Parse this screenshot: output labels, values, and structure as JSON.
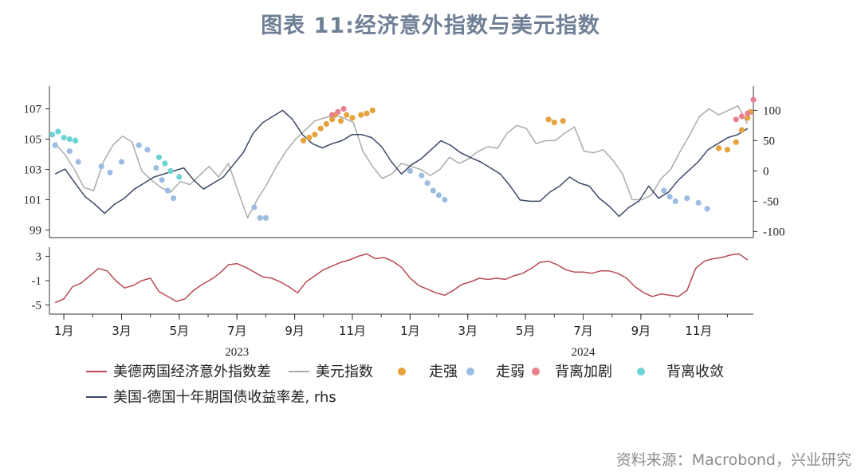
{
  "title": "图表 11:经济意外指数与美元指数",
  "source": "资料来源：Macrobond，兴业研究",
  "chart_data": {
    "type": "line",
    "x_axis": {
      "month_ticks": [
        "1月",
        "3月",
        "5月",
        "7月",
        "9月",
        "11月",
        "1月",
        "3月",
        "5月",
        "7月",
        "9月",
        "11月"
      ],
      "tick_month_index": [
        0,
        2,
        4,
        6,
        8,
        10,
        12,
        14,
        16,
        18,
        20,
        22
      ],
      "years": [
        {
          "label": "2023",
          "center_month": 6
        },
        {
          "label": "2024",
          "center_month": 18
        }
      ],
      "range_months": [
        -0.5,
        23.9
      ]
    },
    "top_panel": {
      "left_axis": {
        "ticks": [
          99,
          101,
          103,
          105,
          107
        ],
        "range": [
          98.5,
          108.5
        ]
      },
      "right_axis": {
        "ticks": [
          100,
          50,
          0,
          -50,
          -100
        ],
        "range": [
          -110,
          140
        ]
      }
    },
    "bottom_panel": {
      "axis": {
        "ticks": [
          3,
          -1,
          -5
        ],
        "range": [
          -6.5,
          4.5
        ]
      }
    },
    "series": [
      {
        "name": "美德两国经济意外指数差",
        "panel": "bottom",
        "color": "#b94a55",
        "values": [
          -4.6,
          -4.0,
          -2.0,
          -1.4,
          -0.2,
          1.0,
          0.6,
          -1.0,
          -2.2,
          -1.8,
          -1.0,
          -0.6,
          -2.8,
          -3.6,
          -4.4,
          -4.0,
          -2.6,
          -1.6,
          -0.8,
          0.2,
          1.6,
          1.8,
          1.2,
          0.4,
          -0.4,
          -0.6,
          -1.2,
          -2.0,
          -3.0,
          -1.2,
          -0.2,
          0.8,
          1.4,
          2.0,
          2.4,
          3.0,
          3.4,
          2.6,
          2.8,
          2.2,
          1.2,
          -0.6,
          -1.8,
          -2.4,
          -3.0,
          -3.4,
          -2.6,
          -1.6,
          -1.2,
          -0.6,
          -0.8,
          -0.6,
          -0.8,
          -0.2,
          0.2,
          1.0,
          2.0,
          2.2,
          1.6,
          0.8,
          0.4,
          0.4,
          0.2,
          0.6,
          0.6,
          0.2,
          -0.6,
          -2.0,
          -3.0,
          -3.6,
          -3.2,
          -3.4,
          -3.6,
          -2.6,
          1.0,
          2.2,
          2.6,
          2.8,
          3.2,
          3.4,
          2.4
        ]
      },
      {
        "name": "美元指数",
        "panel": "top",
        "axis": "left",
        "color": "#ababab",
        "values": [
          104.7,
          104.0,
          103.0,
          101.8,
          101.6,
          103.5,
          104.6,
          105.2,
          104.8,
          102.9,
          102.3,
          101.8,
          101.5,
          102.2,
          102.0,
          102.6,
          103.2,
          102.5,
          103.4,
          101.6,
          99.8,
          101.0,
          102.0,
          103.2,
          104.2,
          105.0,
          105.6,
          106.2,
          106.4,
          106.6,
          106.4,
          106.1,
          104.2,
          103.2,
          102.4,
          102.7,
          103.4,
          103.2,
          103.0,
          102.6,
          103.0,
          103.8,
          103.4,
          103.7,
          104.2,
          104.5,
          104.4,
          105.4,
          105.9,
          105.7,
          104.7,
          104.9,
          104.9,
          105.4,
          105.8,
          104.2,
          104.1,
          104.3,
          103.6,
          102.7,
          101.0,
          101.0,
          101.3,
          102.4,
          103.0,
          104.2,
          105.3,
          106.5,
          107.0,
          106.6,
          106.9,
          107.2,
          106.0
        ]
      },
      {
        "name": "美国-德国十年期国债收益率差",
        "panel": "top",
        "axis": "right",
        "color": "#3c4a66",
        "values": [
          -5,
          3,
          -20,
          -42,
          -55,
          -70,
          -55,
          -45,
          -30,
          -20,
          -10,
          -5,
          0,
          5,
          -15,
          -30,
          -20,
          -10,
          10,
          30,
          62,
          80,
          90,
          100,
          85,
          60,
          45,
          38,
          45,
          50,
          60,
          60,
          55,
          40,
          15,
          -5,
          10,
          20,
          35,
          50,
          42,
          30,
          22,
          15,
          5,
          -5,
          -25,
          -48,
          -50,
          -50,
          -35,
          -25,
          -10,
          -20,
          -25,
          -45,
          -58,
          -75,
          -60,
          -50,
          -25,
          -45,
          -35,
          -15,
          0,
          15,
          35,
          45,
          55,
          60,
          70
        ]
      }
    ],
    "markers": [
      {
        "name": "走强",
        "color": "#e6a23c",
        "points": [
          [
            8.3,
            104.9
          ],
          [
            8.5,
            105.1
          ],
          [
            8.7,
            105.3
          ],
          [
            8.9,
            105.7
          ],
          [
            9.1,
            106.0
          ],
          [
            9.3,
            106.3
          ],
          [
            9.4,
            106.6
          ],
          [
            9.6,
            106.2
          ],
          [
            9.8,
            106.6
          ],
          [
            10.0,
            106.4
          ],
          [
            10.3,
            106.6
          ],
          [
            10.5,
            106.7
          ],
          [
            10.7,
            106.9
          ],
          [
            16.8,
            106.3
          ],
          [
            17.0,
            106.1
          ],
          [
            17.3,
            106.2
          ],
          [
            22.7,
            104.4
          ],
          [
            23.0,
            104.3
          ],
          [
            23.3,
            104.8
          ],
          [
            23.5,
            105.6
          ],
          [
            23.7,
            106.4
          ],
          [
            23.8,
            106.8
          ]
        ]
      },
      {
        "name": "走弱",
        "color": "#9cbde0",
        "points": [
          [
            -0.3,
            104.6
          ],
          [
            0.2,
            104.2
          ],
          [
            0.5,
            103.5
          ],
          [
            1.3,
            103.2
          ],
          [
            1.6,
            102.8
          ],
          [
            2.0,
            103.5
          ],
          [
            2.6,
            104.6
          ],
          [
            2.9,
            104.3
          ],
          [
            3.2,
            103.1
          ],
          [
            3.4,
            102.3
          ],
          [
            3.6,
            101.6
          ],
          [
            3.8,
            101.1
          ],
          [
            6.6,
            100.5
          ],
          [
            6.8,
            99.8
          ],
          [
            7.0,
            99.8
          ],
          [
            12.0,
            102.9
          ],
          [
            12.4,
            102.6
          ],
          [
            12.6,
            102.1
          ],
          [
            12.8,
            101.6
          ],
          [
            13.0,
            101.3
          ],
          [
            13.2,
            101.0
          ],
          [
            20.8,
            101.6
          ],
          [
            21.0,
            101.2
          ],
          [
            21.2,
            100.9
          ],
          [
            21.6,
            101.1
          ],
          [
            22.0,
            100.8
          ],
          [
            22.3,
            100.4
          ]
        ]
      },
      {
        "name": "背离加剧",
        "color": "#e88090",
        "points": [
          [
            9.3,
            106.6
          ],
          [
            9.5,
            106.8
          ],
          [
            9.7,
            107.0
          ],
          [
            23.3,
            106.3
          ],
          [
            23.5,
            106.5
          ],
          [
            23.7,
            106.7
          ],
          [
            23.9,
            107.6
          ]
        ]
      },
      {
        "name": "背离收敛",
        "color": "#6dd4d4",
        "points": [
          [
            -0.4,
            105.3
          ],
          [
            -0.2,
            105.5
          ],
          [
            0.0,
            105.1
          ],
          [
            0.2,
            105.0
          ],
          [
            0.4,
            104.9
          ],
          [
            3.3,
            103.8
          ],
          [
            3.5,
            103.4
          ],
          [
            3.7,
            102.9
          ],
          [
            4.0,
            102.5
          ]
        ]
      }
    ],
    "legend": [
      "美德两国经济意外指数差",
      "美元指数",
      "走强",
      "走弱",
      "背离加剧",
      "背离收敛",
      "美国-德国十年期国债收益率差, rhs"
    ]
  }
}
